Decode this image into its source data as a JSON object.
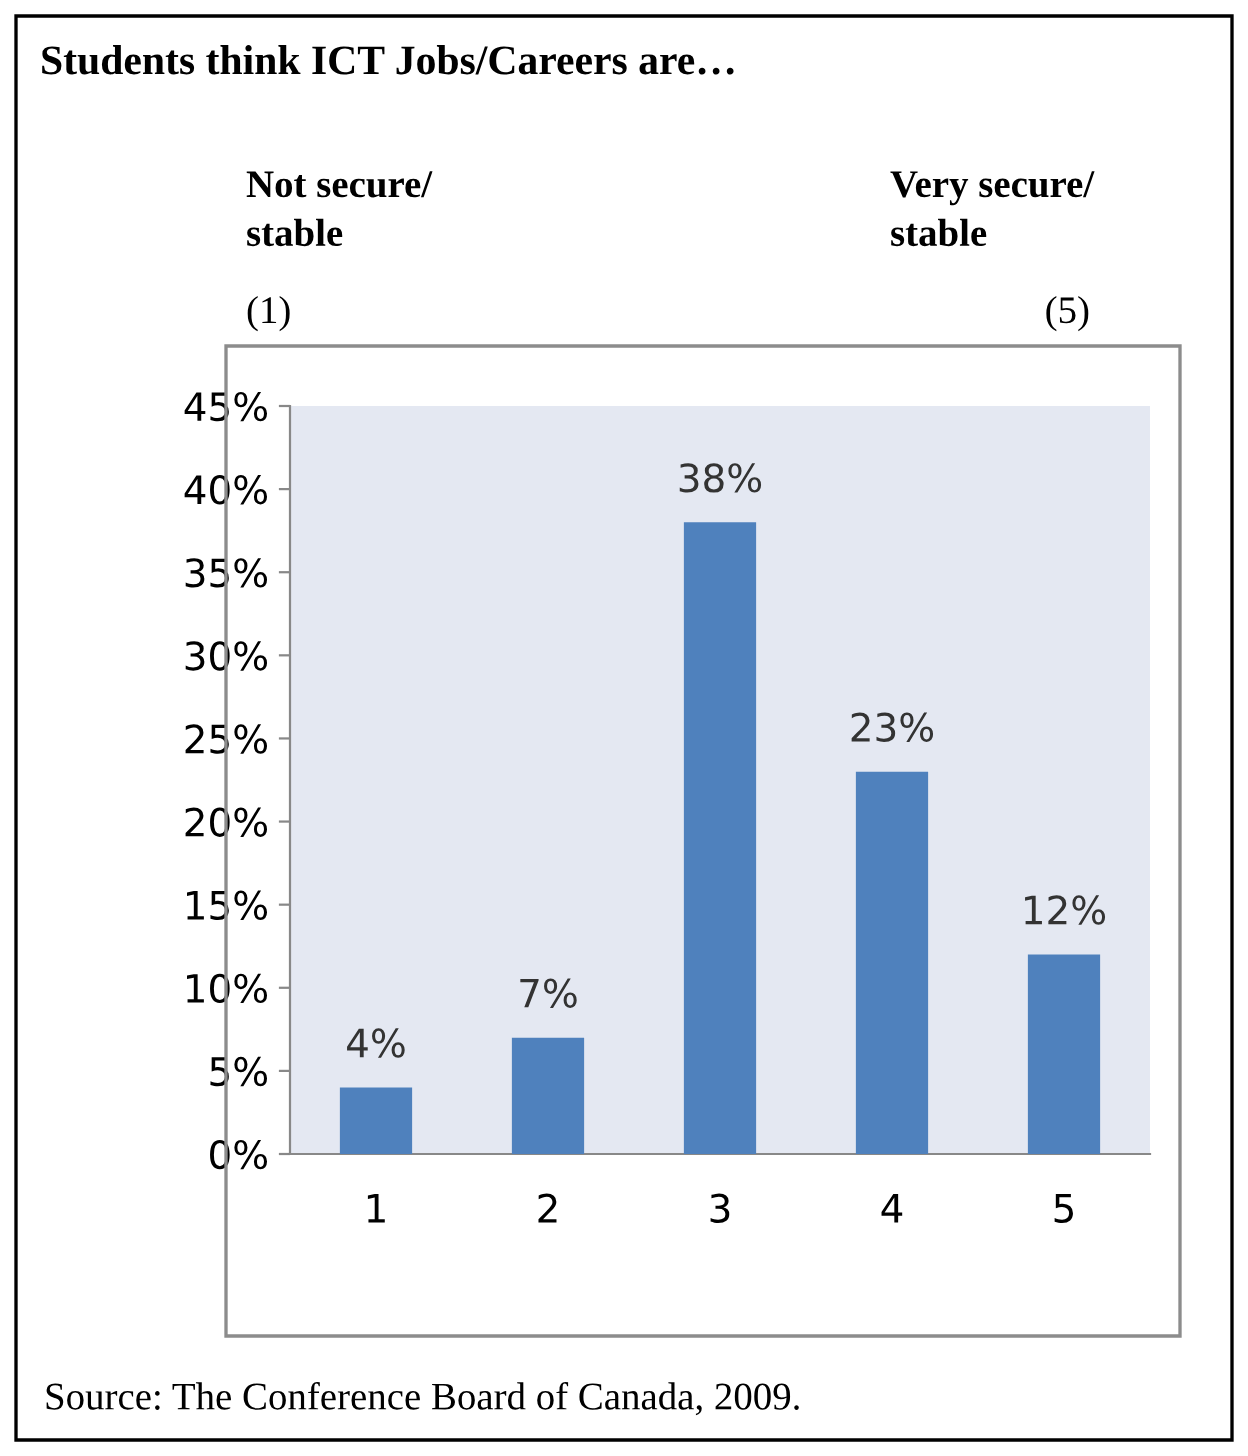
{
  "chart_data": {
    "type": "bar",
    "title": "Students think ICT Jobs/Careers are…",
    "categories": [
      "1",
      "2",
      "3",
      "4",
      "5"
    ],
    "values": [
      4,
      7,
      38,
      23,
      12
    ],
    "value_labels": [
      "4%",
      "7%",
      "38%",
      "23%",
      "12%"
    ],
    "color": "#4f81bd",
    "ylim": [
      0,
      45
    ],
    "yticks": [
      {
        "value": 0,
        "label": "0%"
      },
      {
        "value": 5,
        "label": "5%"
      },
      {
        "value": 10,
        "label": "10%"
      },
      {
        "value": 15,
        "label": "15%"
      },
      {
        "value": 20,
        "label": "20%"
      },
      {
        "value": 25,
        "label": "25%"
      },
      {
        "value": 30,
        "label": "30%"
      },
      {
        "value": 35,
        "label": "35%"
      },
      {
        "value": 40,
        "label": "40%"
      },
      {
        "value": 45,
        "label": "45%"
      }
    ],
    "grid": false,
    "annotations": [
      "Not secure/\nstable",
      "(1)",
      "Very secure/\nstable",
      "(5)",
      "Source: The Conference Board of Canada, 2009."
    ]
  }
}
